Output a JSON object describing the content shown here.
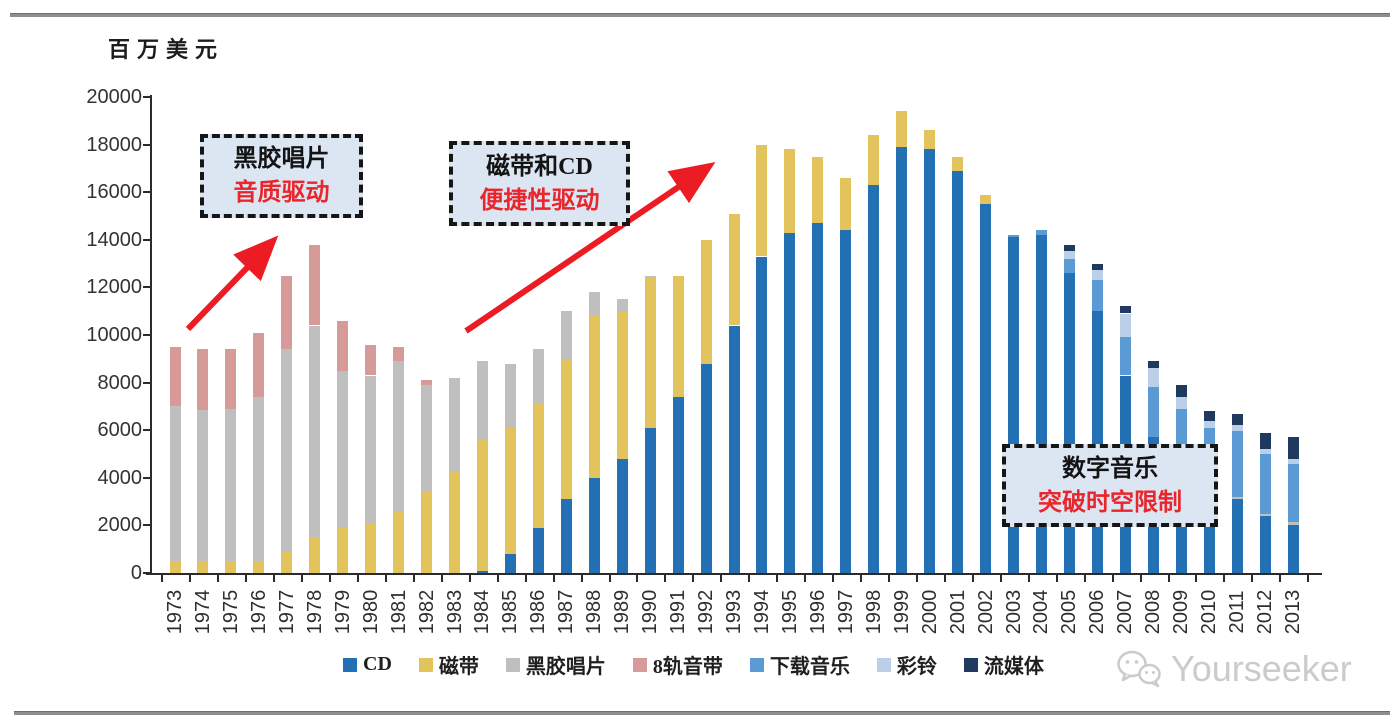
{
  "chart_data": {
    "type": "stacked-bar",
    "unit": "百万美元",
    "categories": [
      "1973",
      "1974",
      "1975",
      "1976",
      "1977",
      "1978",
      "1979",
      "1980",
      "1981",
      "1982",
      "1983",
      "1984",
      "1985",
      "1986",
      "1987",
      "1988",
      "1989",
      "1990",
      "1991",
      "1992",
      "1993",
      "1994",
      "1995",
      "1996",
      "1997",
      "1998",
      "1999",
      "2000",
      "2001",
      "2002",
      "2003",
      "2004",
      "2005",
      "2006",
      "2007",
      "2008",
      "2009",
      "2010",
      "2011",
      "2012",
      "2013"
    ],
    "series": [
      {
        "name": "CD",
        "color": "#2470B4",
        "values": [
          0,
          0,
          0,
          0,
          0,
          0,
          0,
          0,
          0,
          0,
          0,
          100,
          800,
          1900,
          3100,
          4000,
          4800,
          6100,
          7400,
          8800,
          10400,
          13300,
          14300,
          14700,
          14400,
          16300,
          17900,
          17800,
          16900,
          15500,
          14100,
          14200,
          12600,
          11000,
          8300,
          5700,
          4800,
          4200,
          3100,
          2400,
          2000
        ]
      },
      {
        "name": "磁带",
        "color": "#E3C35B",
        "values": [
          500,
          500,
          500,
          500,
          900,
          1500,
          1900,
          2100,
          2600,
          3400,
          4300,
          5500,
          5300,
          5200,
          5900,
          6800,
          6200,
          6300,
          5100,
          5200,
          4700,
          4700,
          3500,
          2800,
          2200,
          2100,
          1500,
          800,
          600,
          400,
          0,
          0,
          0,
          0,
          0,
          0,
          0,
          0,
          0,
          0,
          0
        ]
      },
      {
        "name": "黑胶唱片",
        "color": "#C0BFBF",
        "values": [
          6500,
          6350,
          6400,
          6900,
          8500,
          8900,
          6600,
          6200,
          6300,
          4500,
          3900,
          3300,
          2700,
          2300,
          2000,
          1000,
          500,
          100,
          0,
          0,
          0,
          0,
          0,
          0,
          0,
          0,
          0,
          0,
          0,
          0,
          0,
          0,
          0,
          0,
          0,
          0,
          0,
          0,
          100,
          100,
          150
        ]
      },
      {
        "name": "8轨音带",
        "color": "#D69B98",
        "values": [
          2500,
          2550,
          2500,
          2700,
          3100,
          3400,
          2100,
          1300,
          600,
          200,
          0,
          0,
          0,
          0,
          0,
          0,
          0,
          0,
          0,
          0,
          0,
          0,
          0,
          0,
          0,
          0,
          0,
          0,
          0,
          0,
          0,
          0,
          0,
          0,
          0,
          0,
          0,
          0,
          0,
          0,
          0
        ]
      },
      {
        "name": "下载音乐",
        "color": "#5B9BD5",
        "values": [
          0,
          0,
          0,
          0,
          0,
          0,
          0,
          0,
          0,
          0,
          0,
          0,
          0,
          0,
          0,
          0,
          0,
          0,
          0,
          0,
          0,
          0,
          0,
          0,
          0,
          0,
          0,
          0,
          0,
          0,
          100,
          200,
          600,
          1300,
          1600,
          2100,
          2100,
          1900,
          2750,
          2500,
          2450
        ]
      },
      {
        "name": "彩铃",
        "color": "#BCCFE8",
        "values": [
          0,
          0,
          0,
          0,
          0,
          0,
          0,
          0,
          0,
          0,
          0,
          0,
          0,
          0,
          0,
          0,
          0,
          0,
          0,
          0,
          0,
          0,
          0,
          0,
          0,
          0,
          0,
          0,
          0,
          0,
          0,
          0,
          350,
          450,
          1000,
          800,
          500,
          300,
          250,
          200,
          200
        ]
      },
      {
        "name": "流媒体",
        "color": "#20395E",
        "values": [
          0,
          0,
          0,
          0,
          0,
          0,
          0,
          0,
          0,
          0,
          0,
          0,
          0,
          0,
          0,
          0,
          0,
          0,
          0,
          0,
          0,
          0,
          0,
          0,
          0,
          0,
          0,
          0,
          0,
          0,
          0,
          0,
          250,
          250,
          300,
          300,
          500,
          400,
          500,
          700,
          900
        ]
      }
    ],
    "ylim": [
      0,
      20000
    ],
    "ytick_step": 2000,
    "grid": false,
    "legend_position": "bottom"
  },
  "annotations": [
    {
      "line1": "黑胶唱片",
      "line2": "音质驱动"
    },
    {
      "line1": "磁带和CD",
      "line2": "便捷性驱动"
    },
    {
      "line1": "数字音乐",
      "line2": "突破时空限制"
    }
  ],
  "arrow_color": "#EC1C24",
  "watermark": {
    "text": "Yourseeker"
  }
}
